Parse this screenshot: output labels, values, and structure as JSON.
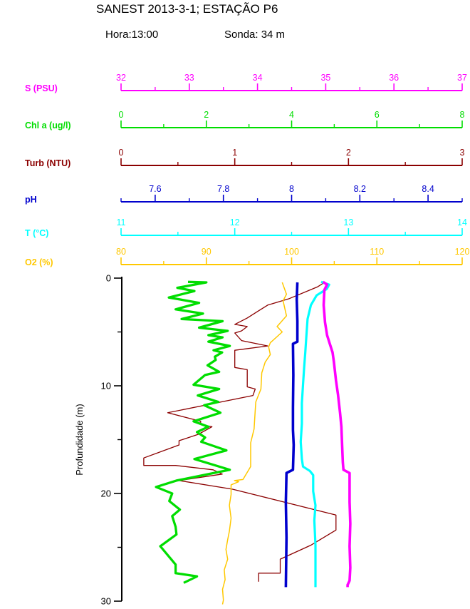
{
  "header": {
    "title": "SANEST 2013-3-1; ESTAÇÃO P6",
    "hora": "Hora:13:00",
    "sonda": "Sonda: 34 m"
  },
  "chart_data": {
    "type": "line",
    "orientation": "vertical-profile",
    "title": "SANEST 2013-3-1; ESTAÇÃO P6",
    "grid": false,
    "legend_position": "stacked-top-axes",
    "y_axis": {
      "label": "Profundidade (m)",
      "min": 0,
      "max": 30,
      "inverted": true,
      "majors": [
        0,
        10,
        20,
        30
      ],
      "minors": [
        5,
        15,
        25
      ],
      "color": "#000000"
    },
    "x_axes": [
      {
        "id": "s",
        "label": "S (PSU)",
        "color": "#ff00ff",
        "min": 32,
        "max": 37,
        "majors": [
          32,
          33,
          34,
          35,
          36,
          37
        ],
        "minors": [
          32.5,
          33.5,
          34.5,
          35.5,
          36.5
        ]
      },
      {
        "id": "chl",
        "label": "Chl a (ug/l)",
        "color": "#00dd00",
        "min": 0,
        "max": 8,
        "majors": [
          0,
          2,
          4,
          6,
          8
        ],
        "minors": [
          1,
          3,
          5,
          7
        ]
      },
      {
        "id": "turb",
        "label": "Turb (NTU)",
        "color": "#8b0000",
        "min": 0,
        "max": 3,
        "majors": [
          0,
          1,
          2,
          3
        ],
        "minors": [
          0.5,
          1.5,
          2.5
        ]
      },
      {
        "id": "ph",
        "label": "pH",
        "color": "#0000cd",
        "min": 7.5,
        "max": 8.5,
        "majors": [
          7.6,
          7.8,
          8,
          8.2,
          8.4
        ],
        "minors": [
          7.5,
          7.7,
          7.9,
          8.1,
          8.3,
          8.5
        ]
      },
      {
        "id": "t",
        "label": "T (°C)",
        "color": "#00ffff",
        "min": 11,
        "max": 14,
        "majors": [
          11,
          12,
          13,
          14
        ],
        "minors": [
          11.5,
          12.5,
          13.5
        ]
      },
      {
        "id": "o2",
        "label": "O2 (%)",
        "color": "#ffc800",
        "min": 80,
        "max": 120,
        "majors": [
          80,
          90,
          100,
          110,
          120
        ],
        "minors": [
          85,
          95,
          105,
          115
        ]
      }
    ],
    "series": [
      {
        "name": "Turb",
        "unit": "NTU",
        "axis": "turb",
        "color": "#8b0000",
        "width": 1.3,
        "points": [
          [
            0.4,
            1.79
          ],
          [
            0.8,
            1.73
          ],
          [
            1.9,
            1.48
          ],
          [
            2.5,
            1.29
          ],
          [
            3.1,
            1.2
          ],
          [
            3.7,
            1.11
          ],
          [
            4.3,
            1.0
          ],
          [
            4.5,
            1.11
          ],
          [
            4.9,
            1.06
          ],
          [
            5.1,
            1.0
          ],
          [
            5.8,
            1.06
          ],
          [
            6.3,
            1.29
          ],
          [
            6.7,
            1.0
          ],
          [
            8.3,
            1.0
          ],
          [
            8.5,
            1.11
          ],
          [
            10.1,
            1.11
          ],
          [
            10.3,
            1.18
          ],
          [
            10.9,
            1.16
          ],
          [
            12.5,
            0.41
          ],
          [
            13.3,
            0.7
          ],
          [
            13.6,
            0.7
          ],
          [
            13.8,
            0.8
          ],
          [
            14.5,
            0.68
          ],
          [
            15.1,
            0.51
          ],
          [
            15.5,
            0.51
          ],
          [
            16.7,
            0.2
          ],
          [
            17.4,
            0.2
          ],
          [
            17.4,
            0.48
          ],
          [
            17.8,
            0.81
          ],
          [
            18.2,
            0.89
          ],
          [
            18.8,
            0.51
          ],
          [
            19.6,
            0.98
          ],
          [
            22.0,
            1.89
          ],
          [
            23.4,
            1.89
          ],
          [
            24.8,
            1.67
          ],
          [
            26.1,
            1.4
          ],
          [
            27.4,
            1.4
          ],
          [
            27.4,
            1.21
          ],
          [
            28.2,
            1.21
          ]
        ]
      },
      {
        "name": "O2",
        "unit": "%",
        "axis": "o2",
        "color": "#ffc800",
        "width": 1.5,
        "points": [
          [
            0.4,
            98.9
          ],
          [
            1.5,
            99.4
          ],
          [
            2.1,
            99.0
          ],
          [
            3.5,
            99.4
          ],
          [
            4.5,
            98.3
          ],
          [
            5.0,
            98.9
          ],
          [
            6.0,
            97.5
          ],
          [
            6.4,
            97.3
          ],
          [
            7.1,
            97.5
          ],
          [
            7.8,
            96.9
          ],
          [
            8.8,
            96.5
          ],
          [
            10.3,
            96.4
          ],
          [
            11.5,
            95.8
          ],
          [
            12.7,
            95.7
          ],
          [
            14.0,
            95.6
          ],
          [
            15.3,
            95.2
          ],
          [
            17.5,
            95.2
          ],
          [
            18.7,
            94.3
          ],
          [
            18.8,
            93.3
          ],
          [
            18.9,
            93.8
          ],
          [
            19.2,
            92.9
          ],
          [
            20.1,
            92.9
          ],
          [
            21.1,
            92.7
          ],
          [
            22.3,
            92.9
          ],
          [
            23.5,
            92.7
          ],
          [
            24.3,
            92.5
          ],
          [
            25.2,
            92.3
          ],
          [
            26.1,
            92.5
          ],
          [
            27.1,
            92.1
          ],
          [
            28.0,
            92.2
          ],
          [
            28.9,
            91.9
          ],
          [
            29.9,
            92.0
          ],
          [
            30.3,
            91.9
          ]
        ]
      },
      {
        "name": "Chl a",
        "unit": "ug/l",
        "axis": "chl",
        "color": "#00dd00",
        "width": 3.3,
        "points": [
          [
            0.35,
            1.57
          ],
          [
            0.4,
            2.0
          ],
          [
            0.9,
            1.32
          ],
          [
            1.2,
            1.72
          ],
          [
            1.8,
            1.12
          ],
          [
            2.3,
            1.83
          ],
          [
            2.9,
            1.28
          ],
          [
            3.3,
            1.92
          ],
          [
            3.8,
            1.42
          ],
          [
            4.0,
            2.38
          ],
          [
            4.6,
            1.83
          ],
          [
            4.9,
            2.5
          ],
          [
            5.3,
            2.05
          ],
          [
            5.5,
            2.38
          ],
          [
            5.9,
            2.05
          ],
          [
            6.3,
            2.55
          ],
          [
            6.7,
            2.17
          ],
          [
            6.9,
            2.37
          ],
          [
            7.3,
            2.2
          ],
          [
            7.6,
            2.22
          ],
          [
            8.1,
            2.03
          ],
          [
            8.7,
            2.3
          ],
          [
            9.0,
            1.97
          ],
          [
            9.9,
            1.7
          ],
          [
            10.3,
            2.3
          ],
          [
            10.9,
            1.8
          ],
          [
            11.5,
            2.28
          ],
          [
            11.8,
            1.95
          ],
          [
            12.5,
            2.33
          ],
          [
            13.3,
            1.7
          ],
          [
            13.8,
            2.05
          ],
          [
            14.3,
            1.78
          ],
          [
            14.8,
            1.97
          ],
          [
            15.2,
            1.88
          ],
          [
            16.0,
            2.47
          ],
          [
            16.8,
            1.72
          ],
          [
            17.8,
            2.55
          ],
          [
            18.8,
            1.3
          ],
          [
            19.4,
            0.82
          ],
          [
            20.0,
            1.2
          ],
          [
            20.7,
            1.13
          ],
          [
            21.5,
            1.38
          ],
          [
            22.1,
            1.2
          ],
          [
            23.1,
            1.28
          ],
          [
            23.8,
            1.3
          ],
          [
            24.9,
            0.92
          ],
          [
            26.6,
            1.28
          ],
          [
            27.4,
            1.28
          ],
          [
            27.7,
            1.78
          ],
          [
            28.3,
            1.47
          ]
        ]
      },
      {
        "name": "pH",
        "unit": "",
        "axis": "ph",
        "color": "#0000cd",
        "width": 3.6,
        "points": [
          [
            0.4,
            8.017
          ],
          [
            2.0,
            8.015
          ],
          [
            4.0,
            8.017
          ],
          [
            5.9,
            8.017
          ],
          [
            6.1,
            8.004
          ],
          [
            9.0,
            8.005
          ],
          [
            12.0,
            8.004
          ],
          [
            14.1,
            8.004
          ],
          [
            15.5,
            8.006
          ],
          [
            17.8,
            8.004
          ],
          [
            18.1,
            7.985
          ],
          [
            20.8,
            7.983
          ],
          [
            24.1,
            7.985
          ],
          [
            28.7,
            7.983
          ]
        ]
      },
      {
        "name": "T",
        "unit": "°C",
        "axis": "t",
        "color": "#00ffff",
        "width": 3.2,
        "points": [
          [
            0.35,
            12.76
          ],
          [
            0.6,
            12.83
          ],
          [
            1.0,
            12.81
          ],
          [
            1.6,
            12.72
          ],
          [
            2.5,
            12.67
          ],
          [
            3.8,
            12.64
          ],
          [
            5.3,
            12.63
          ],
          [
            6.9,
            12.62
          ],
          [
            8.3,
            12.61
          ],
          [
            9.9,
            12.6
          ],
          [
            11.6,
            12.59
          ],
          [
            13.5,
            12.59
          ],
          [
            15.2,
            12.58
          ],
          [
            16.8,
            12.59
          ],
          [
            17.5,
            12.6
          ],
          [
            17.9,
            12.66
          ],
          [
            18.3,
            12.69
          ],
          [
            19.8,
            12.69
          ],
          [
            21.1,
            12.71
          ],
          [
            22.5,
            12.7
          ],
          [
            24.8,
            12.71
          ],
          [
            28.7,
            12.71
          ]
        ]
      },
      {
        "name": "S",
        "unit": "PSU",
        "axis": "s",
        "color": "#ff00ff",
        "width": 3.6,
        "points": [
          [
            0.35,
            34.96
          ],
          [
            0.6,
            35.02
          ],
          [
            1.1,
            34.98
          ],
          [
            2.5,
            34.97
          ],
          [
            4.1,
            34.99
          ],
          [
            5.3,
            35.02
          ],
          [
            6.1,
            35.06
          ],
          [
            6.9,
            35.1
          ],
          [
            7.8,
            35.12
          ],
          [
            9.5,
            35.15
          ],
          [
            10.8,
            35.18
          ],
          [
            12.5,
            35.21
          ],
          [
            13.8,
            35.23
          ],
          [
            15.5,
            35.24
          ],
          [
            17.1,
            35.25
          ],
          [
            17.8,
            35.26
          ],
          [
            18.1,
            35.35
          ],
          [
            20.8,
            35.35
          ],
          [
            22.8,
            35.36
          ],
          [
            24.9,
            35.35
          ],
          [
            26.9,
            35.36
          ],
          [
            28.1,
            35.35
          ],
          [
            28.5,
            35.32
          ],
          [
            28.7,
            35.32
          ]
        ]
      }
    ]
  }
}
